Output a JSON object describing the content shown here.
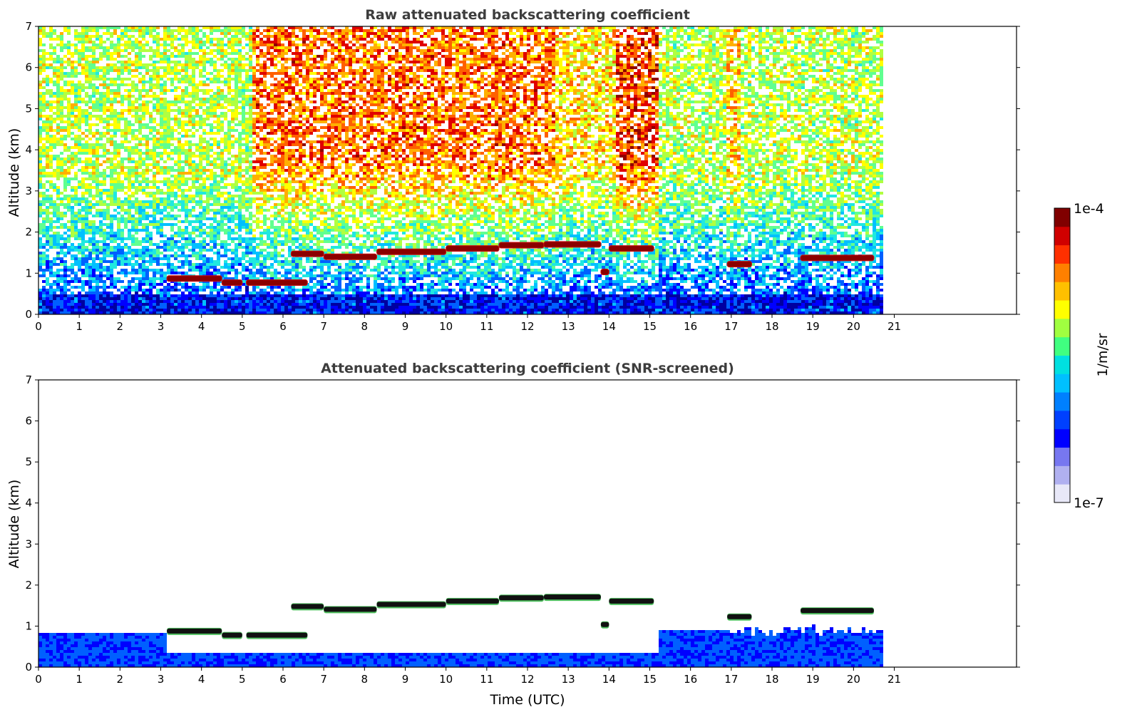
{
  "chart_data": [
    {
      "type": "heatmap",
      "title": "Raw attenuated backscattering coefficient",
      "xlabel": "",
      "ylabel": "Altitude (km)",
      "xlim": [
        0,
        24
      ],
      "ylim": [
        0,
        7
      ],
      "x_ticks": [
        0,
        1,
        2,
        3,
        4,
        5,
        6,
        7,
        8,
        9,
        10,
        11,
        12,
        13,
        14,
        15,
        16,
        17,
        18,
        19,
        20,
        21
      ],
      "y_ticks": [
        0,
        1,
        2,
        3,
        4,
        5,
        6,
        7
      ],
      "data_end_x": 20.65,
      "colorscale": "jet",
      "log_scale_color": true,
      "cloud_layers": [
        {
          "x": [
            3.15,
            4.5
          ],
          "y": 0.87
        },
        {
          "x": [
            4.5,
            5.0
          ],
          "y": 0.77
        },
        {
          "x": [
            5.1,
            6.6
          ],
          "y": 0.77
        },
        {
          "x": [
            6.2,
            7.0
          ],
          "y": 1.47
        },
        {
          "x": [
            7.0,
            8.3
          ],
          "y": 1.4
        },
        {
          "x": [
            8.3,
            10.0
          ],
          "y": 1.52
        },
        {
          "x": [
            10.0,
            11.3
          ],
          "y": 1.6
        },
        {
          "x": [
            11.3,
            12.4
          ],
          "y": 1.68
        },
        {
          "x": [
            12.4,
            13.8
          ],
          "y": 1.7
        },
        {
          "x": [
            14.0,
            15.1
          ],
          "y": 1.6
        },
        {
          "x": [
            13.8,
            14.0
          ],
          "y": 1.03
        },
        {
          "x": [
            16.9,
            17.5
          ],
          "y": 1.22
        },
        {
          "x": [
            18.7,
            20.5
          ],
          "y": 1.37
        }
      ]
    },
    {
      "type": "heatmap",
      "title": "Attenuated backscattering coefficient (SNR-screened)",
      "xlabel": "Time (UTC)",
      "ylabel": "Altitude (km)",
      "xlim": [
        0,
        24
      ],
      "ylim": [
        0,
        7
      ],
      "x_ticks": [
        0,
        1,
        2,
        3,
        4,
        5,
        6,
        7,
        8,
        9,
        10,
        11,
        12,
        13,
        14,
        15,
        16,
        17,
        18,
        19,
        20,
        21
      ],
      "y_ticks": [
        0,
        1,
        2,
        3,
        4,
        5,
        6,
        7
      ],
      "data_end_x": 20.65,
      "colorscale": "jet",
      "log_scale_color": true
    }
  ],
  "colorbar": {
    "label": "1/m/sr",
    "max_label": "1e-4",
    "min_label": "1e-7",
    "colors": [
      "#e8e8f8",
      "#b0b0f0",
      "#7777f0",
      "#0000ff",
      "#0040ff",
      "#0080ff",
      "#00c0ff",
      "#00e0e0",
      "#40ff80",
      "#a0ff40",
      "#ffff00",
      "#ffc000",
      "#ff8000",
      "#ff3000",
      "#d00000",
      "#800000"
    ]
  }
}
